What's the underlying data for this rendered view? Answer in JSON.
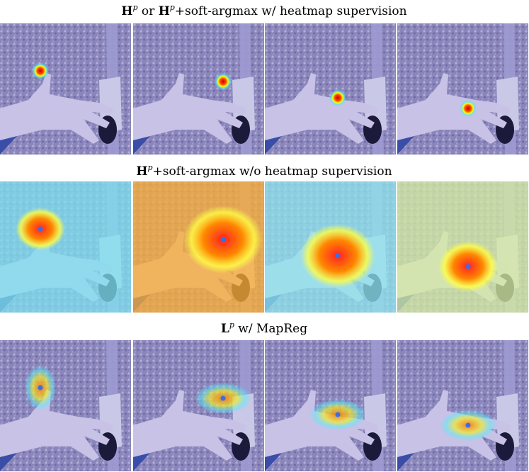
{
  "rows": [
    {
      "title": [
        "H",
        "p",
        " or ",
        "H",
        "p",
        "+soft-argmax w/ heatmap supervision"
      ]
    },
    {
      "title": [
        "H",
        "p",
        "+soft-argmax w/o heatmap supervision"
      ]
    },
    {
      "title": [
        "L",
        "p",
        " w/ MapReg"
      ]
    }
  ]
}
